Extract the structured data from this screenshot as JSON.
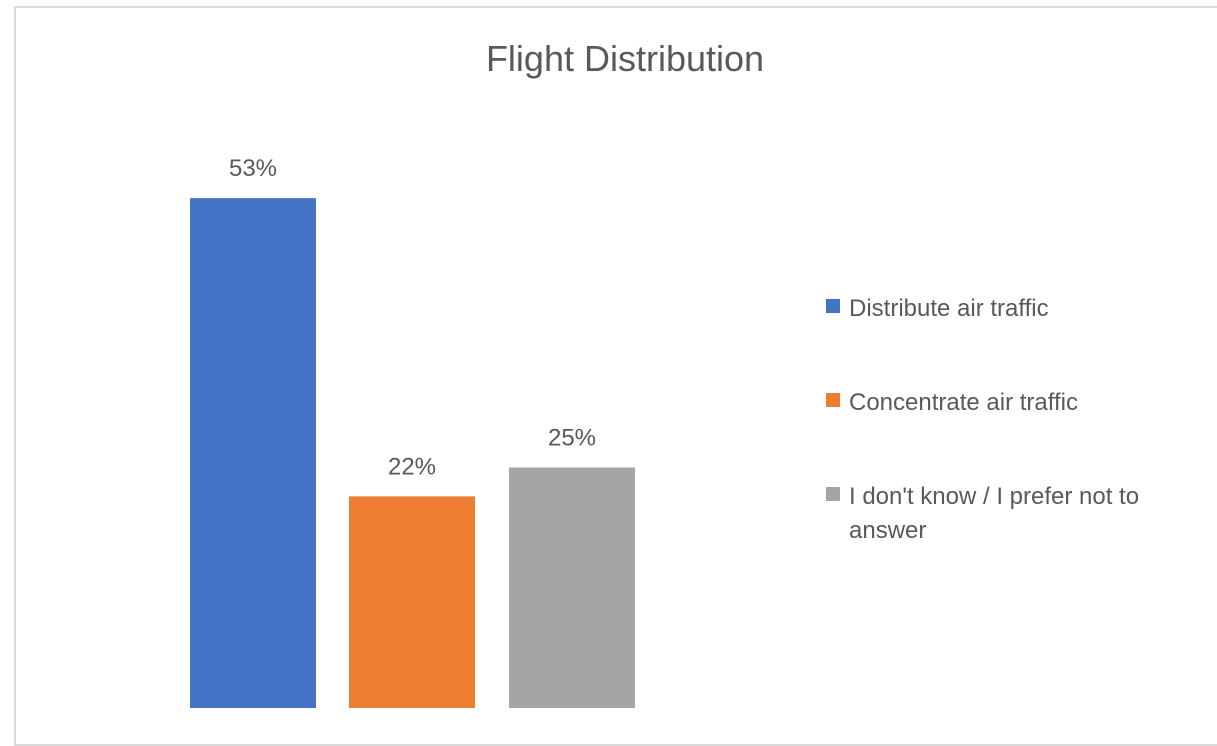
{
  "chart_data": {
    "type": "bar",
    "title": "Flight Distribution",
    "categories": [
      "Distribute air traffic",
      "Concentrate air traffic",
      "I don't know / I prefer not to answer"
    ],
    "values": [
      53,
      22,
      25
    ],
    "data_labels": [
      "53%",
      "22%",
      "25%"
    ],
    "colors": [
      "#4472C4",
      "#ED7D31",
      "#A5A5A5"
    ],
    "unit": "%",
    "ylim": [
      0,
      60
    ],
    "grid": false,
    "legend": "right"
  }
}
